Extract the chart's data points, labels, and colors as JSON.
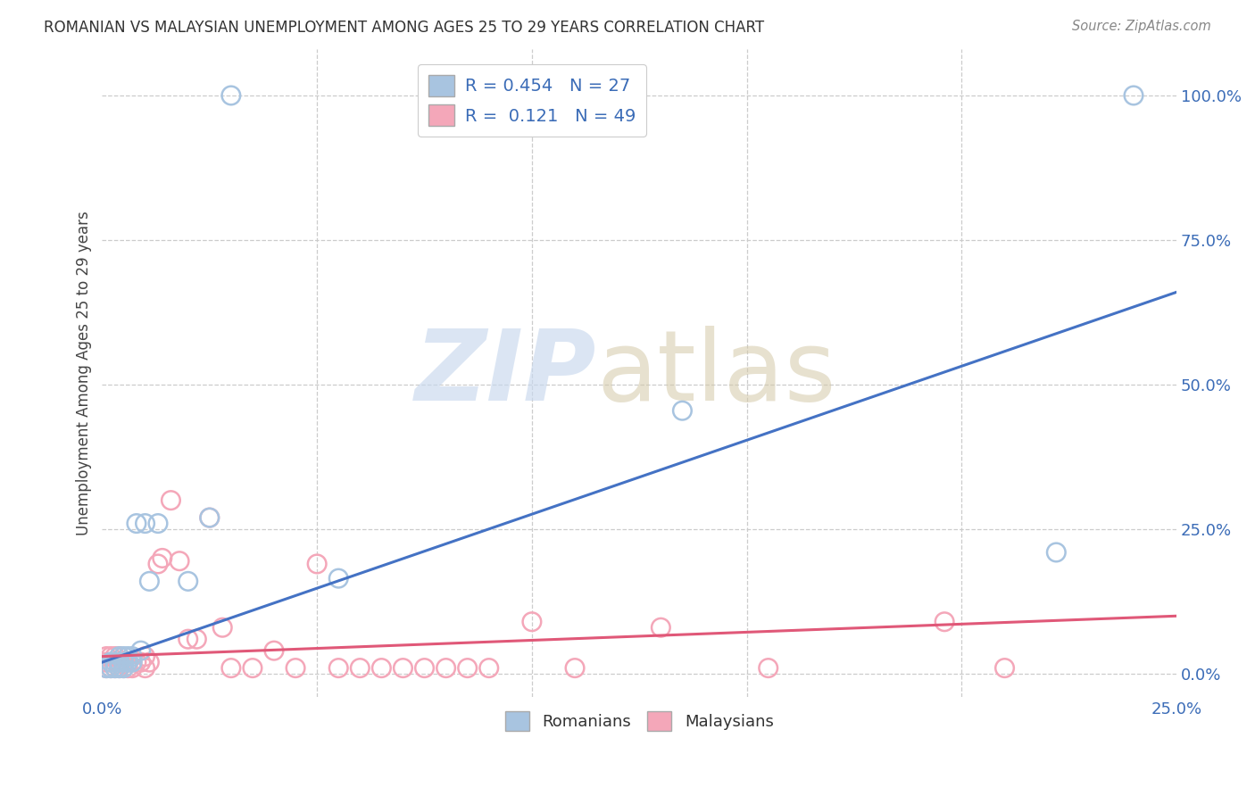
{
  "title": "ROMANIAN VS MALAYSIAN UNEMPLOYMENT AMONG AGES 25 TO 29 YEARS CORRELATION CHART",
  "source": "Source: ZipAtlas.com",
  "ylabel": "Unemployment Among Ages 25 to 29 years",
  "xlim": [
    0.0,
    0.25
  ],
  "ylim": [
    -0.04,
    1.08
  ],
  "yticks_right": [
    0.0,
    0.25,
    0.5,
    0.75,
    1.0
  ],
  "yticklabels_right": [
    "0.0%",
    "25.0%",
    "50.0%",
    "75.0%",
    "100.0%"
  ],
  "legend_r_romanian": "0.454",
  "legend_n_romanian": "27",
  "legend_r_malaysian": "0.121",
  "legend_n_malaysian": "49",
  "romanian_color": "#a8c4e0",
  "romanian_line_color": "#4472c4",
  "malaysian_color": "#f4a7b9",
  "malaysian_line_color": "#e05878",
  "blue_line_x": [
    0.0,
    0.25
  ],
  "blue_line_y": [
    0.02,
    0.66
  ],
  "pink_line_x": [
    0.0,
    0.25
  ],
  "pink_line_y": [
    0.03,
    0.1
  ],
  "romanian_x": [
    0.001,
    0.002,
    0.002,
    0.003,
    0.003,
    0.004,
    0.004,
    0.004,
    0.005,
    0.005,
    0.005,
    0.006,
    0.006,
    0.007,
    0.007,
    0.008,
    0.009,
    0.01,
    0.011,
    0.013,
    0.02,
    0.025,
    0.03,
    0.24,
    0.135,
    0.222,
    0.055
  ],
  "romanian_y": [
    0.01,
    0.01,
    0.02,
    0.01,
    0.02,
    0.01,
    0.02,
    0.03,
    0.01,
    0.02,
    0.03,
    0.02,
    0.03,
    0.02,
    0.03,
    0.26,
    0.04,
    0.26,
    0.16,
    0.26,
    0.16,
    0.27,
    1.0,
    1.0,
    0.455,
    0.21,
    0.165
  ],
  "malaysian_x": [
    0.001,
    0.001,
    0.001,
    0.002,
    0.002,
    0.002,
    0.003,
    0.003,
    0.004,
    0.004,
    0.004,
    0.005,
    0.005,
    0.006,
    0.006,
    0.007,
    0.007,
    0.008,
    0.009,
    0.01,
    0.01,
    0.011,
    0.013,
    0.014,
    0.016,
    0.018,
    0.02,
    0.022,
    0.025,
    0.028,
    0.03,
    0.035,
    0.04,
    0.045,
    0.05,
    0.055,
    0.06,
    0.065,
    0.07,
    0.075,
    0.08,
    0.085,
    0.09,
    0.1,
    0.11,
    0.13,
    0.155,
    0.196,
    0.21
  ],
  "malaysian_y": [
    0.01,
    0.02,
    0.03,
    0.01,
    0.02,
    0.03,
    0.01,
    0.03,
    0.01,
    0.02,
    0.03,
    0.01,
    0.02,
    0.01,
    0.02,
    0.01,
    0.02,
    0.02,
    0.02,
    0.01,
    0.03,
    0.02,
    0.19,
    0.2,
    0.3,
    0.195,
    0.06,
    0.06,
    0.27,
    0.08,
    0.01,
    0.01,
    0.04,
    0.01,
    0.19,
    0.01,
    0.01,
    0.01,
    0.01,
    0.01,
    0.01,
    0.01,
    0.01,
    0.09,
    0.01,
    0.08,
    0.01,
    0.09,
    0.01
  ]
}
